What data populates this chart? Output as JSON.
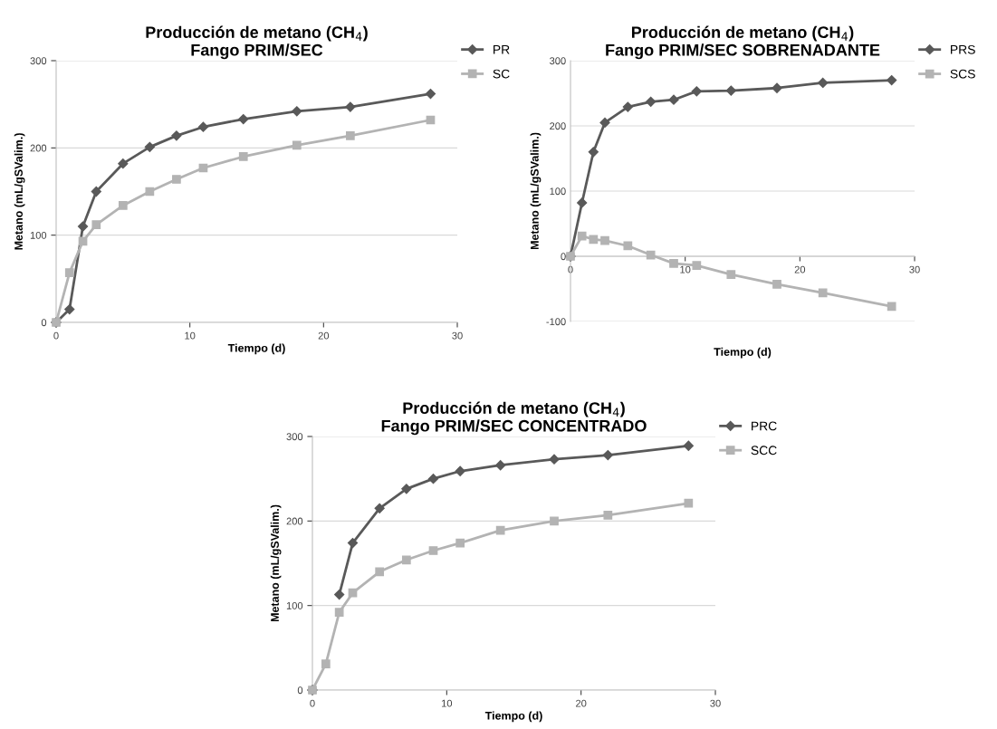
{
  "chart_data": [
    {
      "type": "line",
      "title": "Producción de metano (CH$_{4}$)\nFango PRIM/SEC",
      "xlabel": "Tiempo (d)",
      "ylabel": "Metano (mL/gSValim.)",
      "xlim": [
        0,
        30
      ],
      "xticks": [
        0,
        10,
        20,
        30
      ],
      "ylim": [
        0,
        300
      ],
      "yticks": [
        0,
        100,
        200,
        300
      ],
      "grid": "y",
      "legend": "top right",
      "series": [
        {
          "name": "PR",
          "color": "#595959",
          "marker": "diamond",
          "x": [
            0,
            1,
            2,
            3,
            5,
            7,
            9,
            11,
            14,
            18,
            22,
            28
          ],
          "values": [
            0,
            15,
            110,
            150,
            182,
            201,
            214,
            224,
            233,
            242,
            247,
            262
          ]
        },
        {
          "name": "SC",
          "color": "#b3b3b3",
          "marker": "square",
          "x": [
            0,
            1,
            2,
            3,
            5,
            7,
            9,
            11,
            14,
            18,
            22,
            28
          ],
          "values": [
            0,
            57,
            93,
            112,
            134,
            150,
            164,
            177,
            190,
            203,
            214,
            232
          ]
        }
      ]
    },
    {
      "type": "line",
      "title": "Producción de metano (CH$_{4}$)\nFango PRIM/SEC SOBRENADANTE",
      "xlabel": "Tiempo (d)",
      "ylabel": "Metano (mL/gSValim.)",
      "xlim": [
        0,
        30
      ],
      "xticks": [
        0,
        10,
        20,
        30
      ],
      "ylim": [
        -100,
        300
      ],
      "yticks": [
        -100,
        0,
        100,
        200,
        300
      ],
      "grid": "y",
      "legend": "top right",
      "series": [
        {
          "name": "PRS",
          "color": "#595959",
          "marker": "diamond",
          "x": [
            0,
            1,
            2,
            3,
            5,
            7,
            9,
            11,
            14,
            18,
            22,
            28
          ],
          "values": [
            0,
            82,
            160,
            205,
            229,
            237,
            240,
            253,
            254,
            258,
            266,
            270
          ]
        },
        {
          "name": "SCS",
          "color": "#b3b3b3",
          "marker": "square",
          "x": [
            0,
            1,
            2,
            3,
            5,
            7,
            9,
            11,
            14,
            18,
            22,
            28
          ],
          "values": [
            0,
            31,
            26,
            24,
            16,
            2,
            -11,
            -14,
            -28,
            -43,
            -56,
            -77
          ]
        }
      ]
    },
    {
      "type": "line",
      "title": "Producción de metano (CH$_{4}$)\nFango PRIM/SEC CONCENTRADO",
      "xlabel": "Tiempo (d)",
      "ylabel": "Metano (mL/gSValim.)",
      "xlim": [
        0,
        30
      ],
      "xticks": [
        0,
        10,
        20,
        30
      ],
      "ylim": [
        0,
        300
      ],
      "yticks": [
        0,
        100,
        200,
        300
      ],
      "grid": "y",
      "legend": "top right",
      "series": [
        {
          "name": "PRC",
          "color": "#595959",
          "marker": "diamond",
          "x": [
            0,
            1,
            2,
            3,
            5,
            7,
            9,
            11,
            14,
            18,
            22,
            28
          ],
          "values": [
            0,
            null,
            113,
            174,
            215,
            238,
            250,
            259,
            266,
            273,
            278,
            289
          ]
        },
        {
          "name": "SCC",
          "color": "#b3b3b3",
          "marker": "square",
          "x": [
            0,
            1,
            2,
            3,
            5,
            7,
            9,
            11,
            14,
            18,
            22,
            28
          ],
          "values": [
            0,
            31,
            92,
            115,
            140,
            154,
            165,
            174,
            189,
            200,
            207,
            221
          ]
        }
      ]
    }
  ]
}
